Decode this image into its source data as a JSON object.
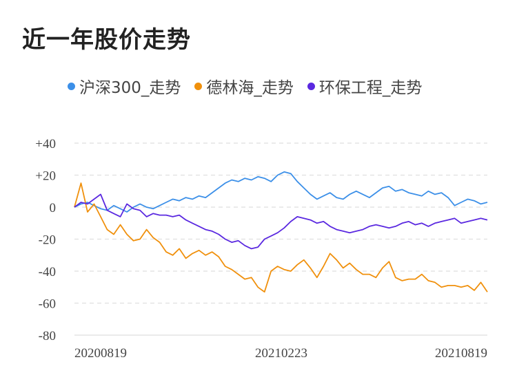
{
  "title": "近一年股价走势",
  "colors": {
    "s1": "#3b8fe8",
    "s2": "#f0900c",
    "s3": "#5a28e0",
    "grid": "#e3e3e3"
  },
  "chart_data": {
    "type": "line",
    "title": "近一年股价走势",
    "xlabel": "",
    "ylabel": "",
    "ylim": [
      -80,
      45
    ],
    "y_ticks": [
      40,
      20,
      0,
      -20,
      -40,
      -60,
      -80
    ],
    "y_tick_labels": [
      "+40",
      "+20",
      "0",
      "-20",
      "-40",
      "-60",
      "-80"
    ],
    "x_tick_labels": [
      "20200819",
      "20210223",
      "20210819"
    ],
    "legend_position": "top",
    "series": [
      {
        "name": "沪深300_走势",
        "color": "#3b8fe8",
        "values": [
          0,
          2,
          3,
          1,
          -1,
          -2,
          1,
          -1,
          -3,
          0,
          2,
          0,
          -1,
          1,
          3,
          5,
          4,
          6,
          5,
          7,
          6,
          9,
          12,
          15,
          17,
          16,
          18,
          17,
          19,
          18,
          16,
          20,
          22,
          21,
          16,
          12,
          8,
          5,
          7,
          9,
          6,
          5,
          8,
          10,
          8,
          6,
          9,
          12,
          13,
          10,
          11,
          9,
          8,
          7,
          10,
          8,
          9,
          6,
          1,
          3,
          5,
          4,
          2,
          3
        ]
      },
      {
        "name": "德林海_走势",
        "color": "#f0900c",
        "values": [
          0,
          15,
          -3,
          2,
          -6,
          -14,
          -17,
          -11,
          -17,
          -21,
          -20,
          -14,
          -19,
          -22,
          -28,
          -30,
          -26,
          -32,
          -29,
          -27,
          -30,
          -28,
          -31,
          -37,
          -39,
          -42,
          -45,
          -44,
          -50,
          -53,
          -40,
          -37,
          -39,
          -40,
          -36,
          -33,
          -38,
          -44,
          -37,
          -29,
          -33,
          -38,
          -35,
          -39,
          -42,
          -42,
          -44,
          -38,
          -34,
          -44,
          -46,
          -45,
          -45,
          -42,
          -46,
          -47,
          -50,
          -49,
          -49,
          -50,
          -49,
          -52,
          -47,
          -53
        ]
      },
      {
        "name": "环保工程_走势",
        "color": "#5a28e0",
        "values": [
          0,
          3,
          2,
          5,
          8,
          -2,
          -4,
          -6,
          2,
          -1,
          -2,
          -6,
          -4,
          -5,
          -5,
          -6,
          -5,
          -8,
          -10,
          -12,
          -14,
          -15,
          -17,
          -20,
          -22,
          -21,
          -24,
          -26,
          -25,
          -20,
          -18,
          -16,
          -13,
          -9,
          -6,
          -7,
          -8,
          -10,
          -9,
          -12,
          -14,
          -15,
          -16,
          -15,
          -14,
          -12,
          -11,
          -12,
          -13,
          -12,
          -10,
          -9,
          -11,
          -10,
          -12,
          -10,
          -9,
          -8,
          -7,
          -10,
          -9,
          -8,
          -7,
          -8
        ]
      }
    ]
  }
}
